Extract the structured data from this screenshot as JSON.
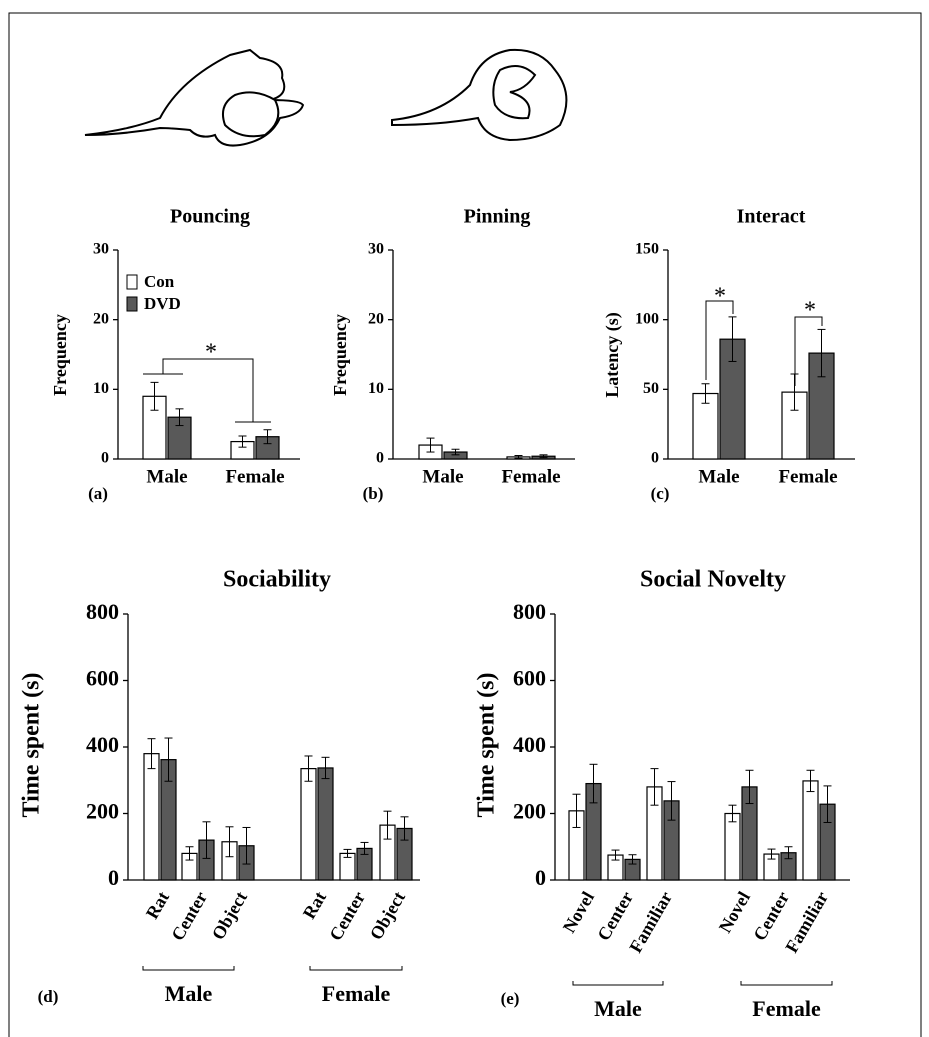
{
  "chart_data": [
    {
      "type": "bar",
      "title": "Pouncing",
      "y_label": "Frequency",
      "panel_label": "(a)",
      "categories": [
        "Male",
        "Female"
      ],
      "series": [
        {
          "name": "Con",
          "color": "#ffffff",
          "values": [
            9,
            2.5
          ],
          "errors": [
            2,
            0.8
          ]
        },
        {
          "name": "DVD",
          "color": "#595959",
          "values": [
            6,
            3.2
          ],
          "errors": [
            1.2,
            1
          ]
        }
      ],
      "ylim": [
        0,
        30
      ],
      "yticks": [
        0,
        10,
        20,
        30
      ],
      "legend": "upper left",
      "annotations": [
        "*"
      ]
    },
    {
      "type": "bar",
      "title": "Pinning",
      "y_label": "Frequency",
      "panel_label": "(b)",
      "categories": [
        "Male",
        "Female"
      ],
      "series": [
        {
          "color": "#ffffff",
          "values": [
            2,
            0.3
          ],
          "errors": [
            1,
            0.2
          ]
        },
        {
          "color": "#595959",
          "values": [
            1,
            0.4
          ],
          "errors": [
            0.4,
            0.2
          ]
        }
      ],
      "ylim": [
        0,
        30
      ],
      "yticks": [
        0,
        10,
        20,
        30
      ]
    },
    {
      "type": "bar",
      "title": "Interact",
      "y_label": "Latency (s)",
      "panel_label": "(c)",
      "categories": [
        "Male",
        "Female"
      ],
      "series": [
        {
          "color": "#ffffff",
          "values": [
            47,
            48
          ],
          "errors": [
            7,
            13
          ]
        },
        {
          "color": "#595959",
          "values": [
            86,
            76
          ],
          "errors": [
            16,
            17
          ]
        }
      ],
      "ylim": [
        0,
        150
      ],
      "yticks": [
        0,
        50,
        100,
        150
      ],
      "annotations": [
        "*",
        "*"
      ]
    },
    {
      "type": "bar",
      "title": "Sociability",
      "y_label": "Time spent (s)",
      "panel_label": "(d)",
      "categories": [
        "Rat",
        "Center",
        "Object",
        "Rat",
        "Center",
        "Object"
      ],
      "groups": [
        "Male",
        "Female"
      ],
      "series": [
        {
          "color": "#ffffff",
          "values": [
            380,
            80,
            115,
            335,
            80,
            165
          ],
          "errors": [
            45,
            20,
            45,
            38,
            12,
            42
          ]
        },
        {
          "color": "#595959",
          "values": [
            362,
            120,
            103,
            337,
            95,
            155
          ],
          "errors": [
            65,
            55,
            55,
            32,
            18,
            35
          ]
        }
      ],
      "ylim": [
        0,
        800
      ],
      "yticks": [
        0,
        200,
        400,
        600,
        800
      ]
    },
    {
      "type": "bar",
      "title": "Social Novelty",
      "y_label": "Time spent (s)",
      "panel_label": "(e)",
      "categories": [
        "Novel",
        "Center",
        "Familiar",
        "Novel",
        "Center",
        "Familiar"
      ],
      "groups": [
        "Male",
        "Female"
      ],
      "series": [
        {
          "color": "#ffffff",
          "values": [
            208,
            75,
            280,
            200,
            78,
            298
          ],
          "errors": [
            50,
            15,
            55,
            25,
            15,
            32
          ]
        },
        {
          "color": "#595959",
          "values": [
            290,
            62,
            238,
            280,
            82,
            228
          ],
          "errors": [
            58,
            14,
            58,
            50,
            18,
            55
          ]
        }
      ],
      "ylim": [
        0,
        800
      ],
      "yticks": [
        0,
        200,
        400,
        600,
        800
      ]
    }
  ]
}
